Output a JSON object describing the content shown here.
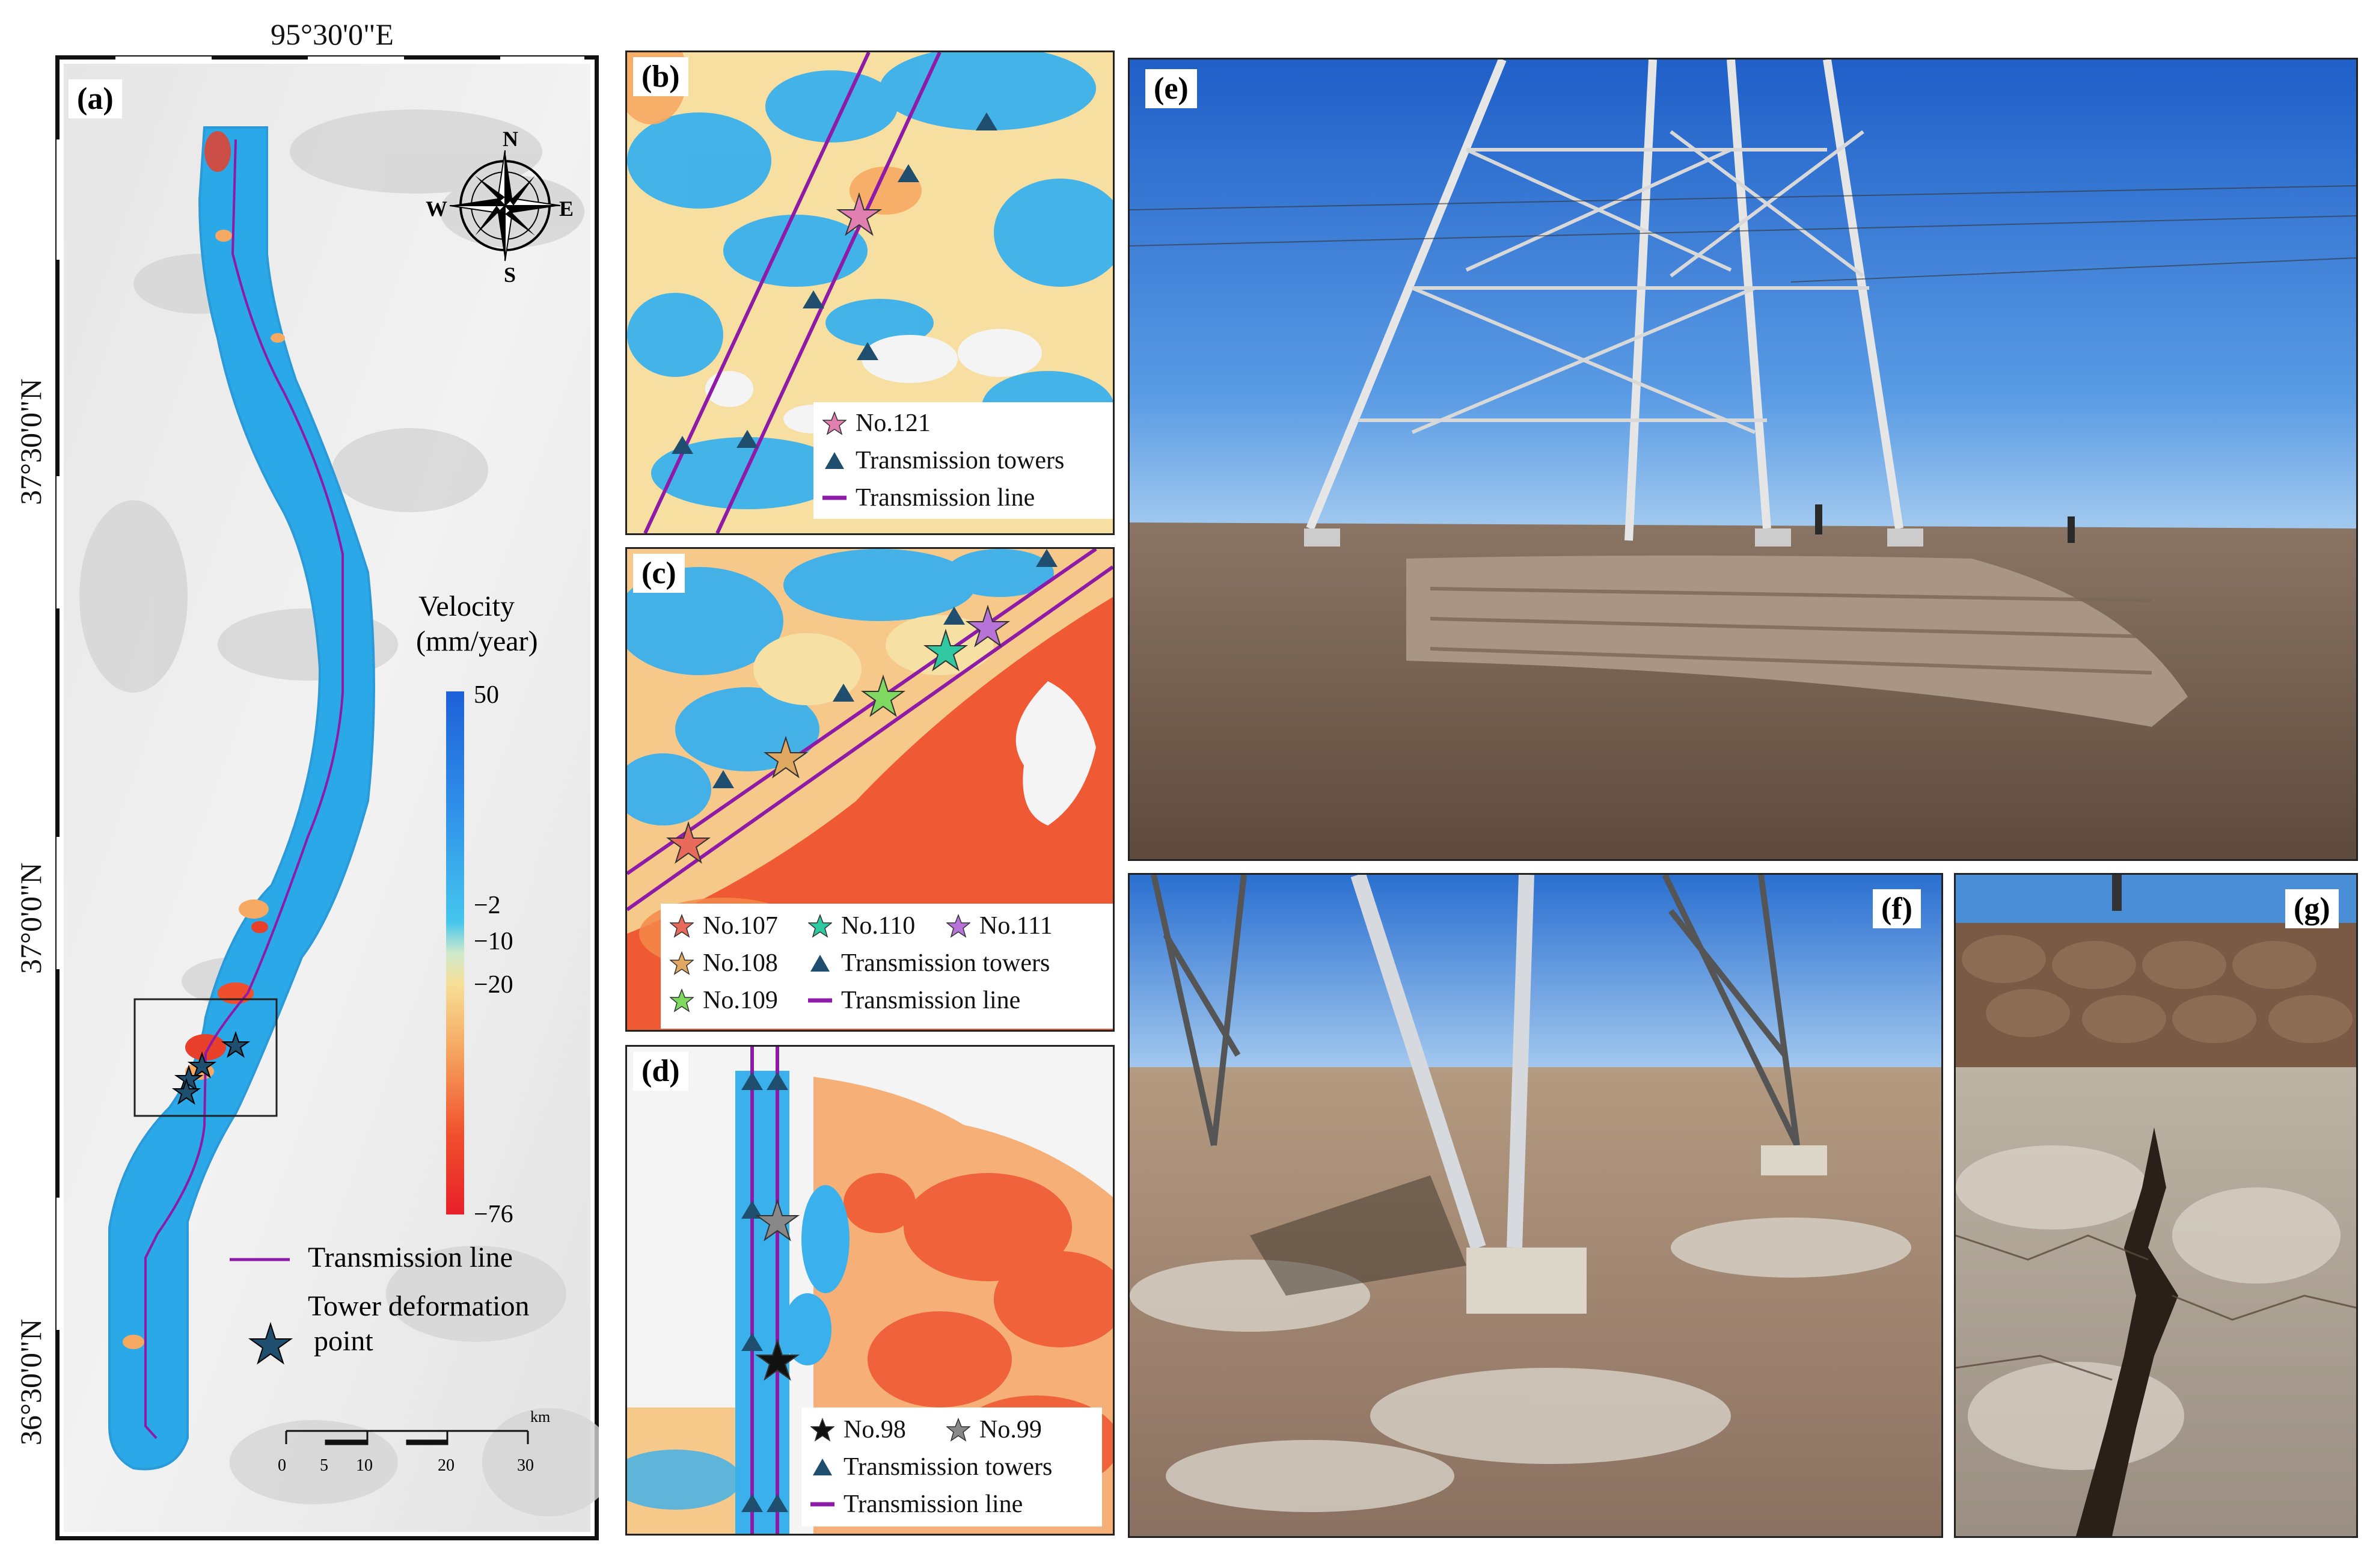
{
  "panel_a": {
    "label": "(a)",
    "coord_top": "95°30'0\"E",
    "coord_left": [
      "37°30'0\"N",
      "37°0'0\"N",
      "36°30'0\"N"
    ],
    "compass": {
      "n": "N",
      "s": "S",
      "e": "E",
      "w": "W"
    },
    "colorbar": {
      "title_line1": "Velocity",
      "title_line2": "(mm/year)",
      "ticks": [
        "50",
        "−2",
        "−10",
        "−20",
        "−76"
      ]
    },
    "legend": {
      "line_label": "Transmission line",
      "star_label_line1": "Tower deformation",
      "star_label_line2": "point"
    },
    "scalebar": {
      "ticks": [
        "0",
        "5",
        "10",
        "20",
        "30"
      ],
      "unit": "km"
    }
  },
  "panel_b": {
    "label": "(b)",
    "legend": [
      {
        "marker": "star",
        "color": "#e07fb0",
        "text": "No.121"
      },
      {
        "marker": "triangle",
        "color": "#1f4e6e",
        "text": "Transmission towers"
      },
      {
        "marker": "line",
        "color": "#8e1aa8",
        "text": "Transmission line"
      }
    ]
  },
  "panel_c": {
    "label": "(c)",
    "legend": [
      {
        "marker": "star",
        "color": "#e86a5a",
        "text": "No.107"
      },
      {
        "marker": "star",
        "color": "#2fc8a0",
        "text": "No.110"
      },
      {
        "marker": "star",
        "color": "#b873d8",
        "text": "No.111"
      },
      {
        "marker": "star",
        "color": "#e0a860",
        "text": "No.108"
      },
      {
        "marker": "triangle",
        "color": "#1f4e6e",
        "text": "Transmission towers"
      },
      {
        "marker": "star",
        "color": "#7fd860",
        "text": "No.109"
      },
      {
        "marker": "line",
        "color": "#8e1aa8",
        "text": "Transmission line"
      }
    ]
  },
  "panel_d": {
    "label": "(d)",
    "legend": [
      {
        "marker": "star",
        "color": "#111111",
        "text": "No.98"
      },
      {
        "marker": "star",
        "color": "#888888",
        "text": "No.99"
      },
      {
        "marker": "triangle",
        "color": "#1f4e6e",
        "text": "Transmission towers"
      },
      {
        "marker": "line",
        "color": "#8e1aa8",
        "text": "Transmission line"
      }
    ]
  },
  "panel_e": {
    "label": "(e)"
  },
  "panel_f": {
    "label": "(f)"
  },
  "panel_g": {
    "label": "(g)"
  },
  "colors": {
    "deformation_blue": "#2aa8e8",
    "deformation_red": "#e8402a",
    "line_purple": "#8e1aa8",
    "tower_navy": "#1f4e6e",
    "sky": "#3f86d9"
  }
}
